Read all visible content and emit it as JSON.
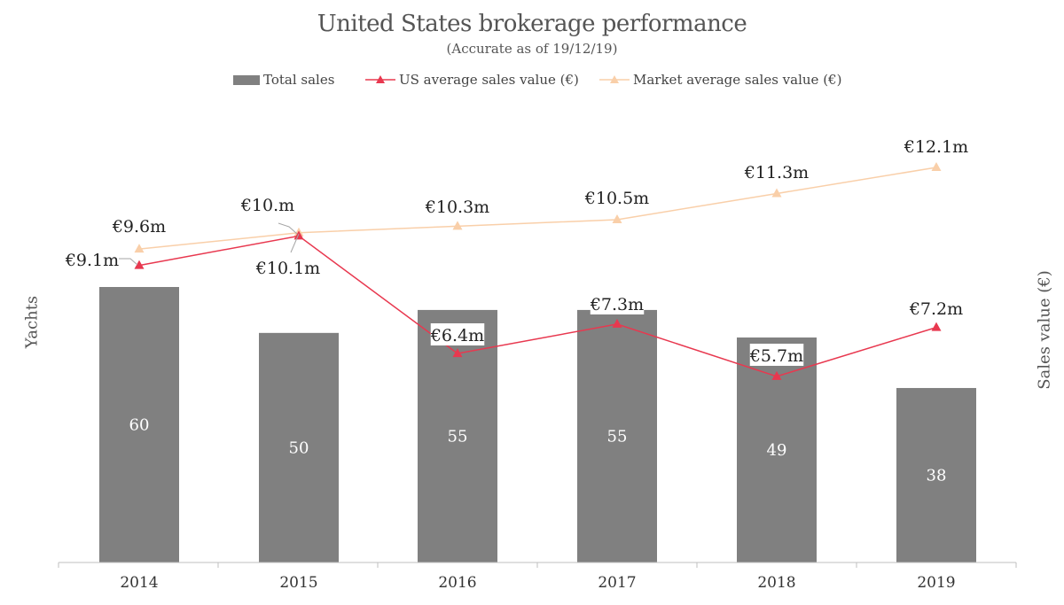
{
  "title": "United States brokerage performance",
  "subtitle": "(Accurate as of 19/12/19)",
  "legend": {
    "total_sales": "Total sales",
    "us_avg": "US average sales value (€)",
    "market_avg": "Market average sales value (€)"
  },
  "axes": {
    "left_title": "Yachts",
    "right_title": "Sales value (€)"
  },
  "colors": {
    "bar": "#808080",
    "us_line": "#e8384f",
    "market_line": "#f9cfa9",
    "bar_label": "#ffffff",
    "text": "#444444"
  },
  "chart_data": {
    "type": "bar",
    "categories": [
      "2014",
      "2015",
      "2016",
      "2017",
      "2018",
      "2019"
    ],
    "series": [
      {
        "name": "Total sales",
        "type": "bar",
        "axis": "left",
        "values": [
          60,
          50,
          55,
          55,
          49,
          38
        ],
        "labels": [
          "60",
          "50",
          "55",
          "55",
          "49",
          "38"
        ]
      },
      {
        "name": "US average sales value (€)",
        "type": "line",
        "axis": "right",
        "values": [
          9.1,
          10.0,
          6.4,
          7.3,
          5.7,
          7.2
        ],
        "labels": [
          "€9.1m",
          "€10.m",
          "€6.4m",
          "€7.3m",
          "€5.7m",
          "€7.2m"
        ]
      },
      {
        "name": "Market average sales value (€)",
        "type": "line",
        "axis": "right",
        "values": [
          9.6,
          10.1,
          10.3,
          10.5,
          11.3,
          12.1
        ],
        "labels": [
          "€9.6m",
          "€10.1m",
          "€10.3m",
          "€10.5m",
          "€11.3m",
          "€12.1m"
        ]
      }
    ],
    "ylabel": "Yachts",
    "y2label": "Sales value (€)",
    "ylim": [
      0,
      60
    ],
    "y2lim": [
      0,
      12.1
    ],
    "grid": false,
    "legend_position": "top-center"
  }
}
